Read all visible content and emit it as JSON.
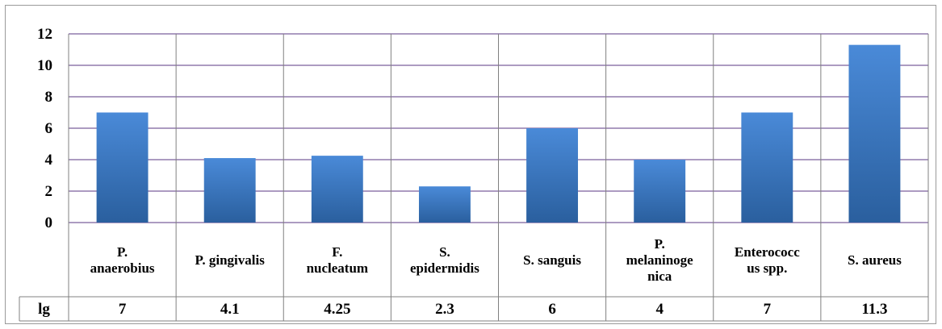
{
  "chart_data": {
    "type": "bar",
    "categories": [
      [
        "P.",
        "anaerobius"
      ],
      [
        "P. gingivalis"
      ],
      [
        "F.",
        "nucleatum"
      ],
      [
        "S.",
        "epidermidis"
      ],
      [
        "S. sanguis"
      ],
      [
        "P.",
        "melaninoge",
        "nica"
      ],
      [
        "Enterococc",
        "us spp."
      ],
      [
        "S. aureus"
      ]
    ],
    "series": [
      {
        "name": "lg",
        "values": [
          7,
          4.1,
          4.25,
          2.3,
          6,
          4,
          7,
          11.3
        ]
      }
    ],
    "value_labels": [
      "7",
      "4.1",
      "4.25",
      "2.3",
      "6",
      "4",
      "7",
      "11.3"
    ],
    "ylim": [
      0,
      12
    ],
    "yticks": [
      0,
      2,
      4,
      6,
      8,
      10,
      12
    ],
    "grid": true,
    "data_table": true,
    "colors": {
      "bar_top": "#4a8ad8",
      "bar_bottom": "#2a5f9e",
      "gridline": "#7b5f9c",
      "table_line": "#808080"
    }
  }
}
